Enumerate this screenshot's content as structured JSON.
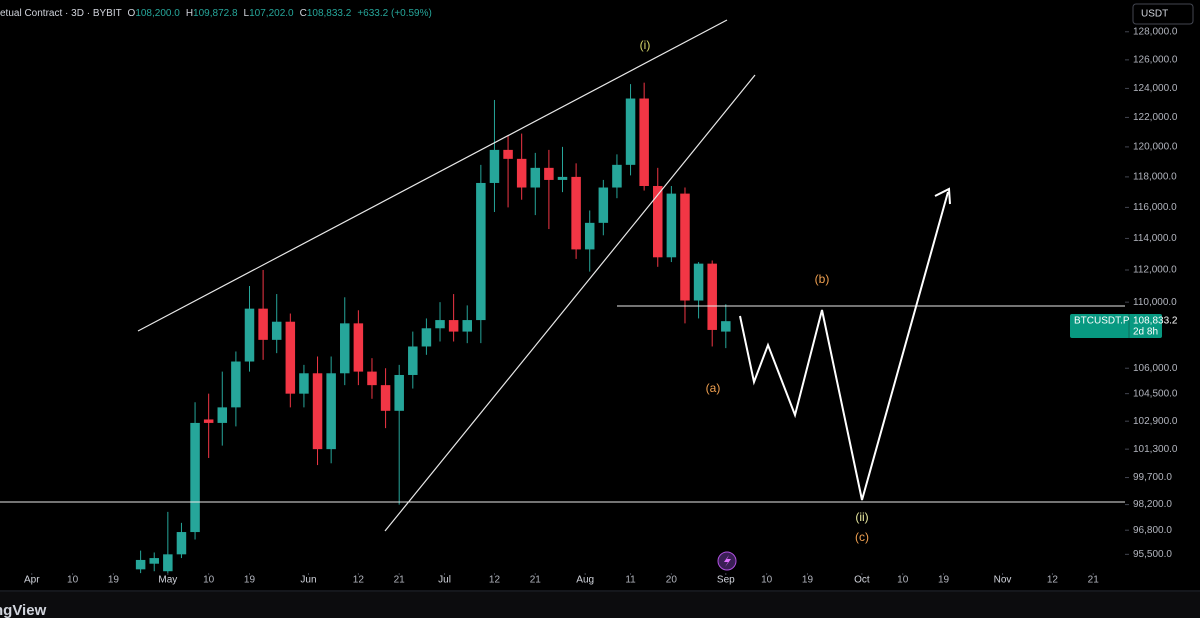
{
  "header": {
    "title": "etual Contract · 3D · BYBIT",
    "ohlc": [
      {
        "key": "O",
        "value": "108,200.0"
      },
      {
        "key": "H",
        "value": "109,872.8"
      },
      {
        "key": "L",
        "value": "107,202.0"
      },
      {
        "key": "C",
        "value": "108,833.2"
      }
    ],
    "change": "+633.2 (+0.59%)",
    "currency_button": "USDT",
    "brand": "ngView"
  },
  "price_label": {
    "symbol": "BTCUSDT.P",
    "price": "108,833.2",
    "countdown": "2d 8h"
  },
  "annotations": {
    "wave_i": "(i)",
    "wave_ii": "(ii)",
    "wave_a": "(a)",
    "wave_b": "(b)",
    "wave_c": "(c)"
  },
  "chart_data": {
    "type": "candlestick",
    "log_scale": true,
    "up_color": "#26a69a",
    "down_color": "#f23645",
    "x": [
      "04-25",
      "04-28",
      "05-01",
      "05-04",
      "05-07",
      "05-10",
      "05-13",
      "05-16",
      "05-19",
      "05-22",
      "05-25",
      "05-28",
      "05-31",
      "06-03",
      "06-06",
      "06-09",
      "06-12",
      "06-15",
      "06-18",
      "06-21",
      "06-24",
      "06-27",
      "06-30",
      "07-03",
      "07-06",
      "07-09",
      "07-12",
      "07-15",
      "07-18",
      "07-21",
      "07-24",
      "07-27",
      "07-30",
      "08-02",
      "08-05",
      "08-08",
      "08-11",
      "08-14",
      "08-17",
      "08-20",
      "08-23",
      "08-26",
      "08-29",
      "09-01"
    ],
    "open": [
      94700,
      95000,
      94600,
      95500,
      96700,
      103000,
      102800,
      103700,
      106400,
      109600,
      107700,
      108800,
      104500,
      105700,
      101300,
      105700,
      108700,
      105800,
      105000,
      103500,
      105600,
      107300,
      108400,
      108900,
      108200,
      108900,
      117600,
      119800,
      119200,
      117300,
      118600,
      117800,
      118000,
      113300,
      115000,
      117300,
      118800,
      123300,
      117400,
      112800,
      116900,
      110100,
      112400,
      108200
    ],
    "high": [
      95700,
      95600,
      97800,
      97200,
      104000,
      104500,
      105800,
      107000,
      111000,
      112000,
      110500,
      109300,
      106200,
      106700,
      106700,
      110300,
      109500,
      106600,
      106000,
      106200,
      108200,
      109000,
      110000,
      110500,
      109800,
      118800,
      123200,
      120800,
      120900,
      119600,
      119800,
      120000,
      118900,
      115800,
      117800,
      119500,
      124300,
      124400,
      118600,
      117400,
      117300,
      112500,
      112600,
      109872.8
    ],
    "low": [
      94500,
      94600,
      94500,
      95300,
      96300,
      100800,
      101500,
      102600,
      105800,
      106500,
      106900,
      103700,
      103700,
      100400,
      100500,
      105000,
      105000,
      104200,
      102500,
      98200,
      104800,
      106800,
      107600,
      107600,
      107500,
      107500,
      115700,
      116000,
      116500,
      115500,
      114600,
      117000,
      112700,
      111900,
      114200,
      116600,
      118100,
      117100,
      112200,
      112500,
      108700,
      109000,
      107300,
      107202
    ],
    "close": [
      95200,
      95300,
      95500,
      96700,
      102800,
      102800,
      103700,
      106400,
      109600,
      107700,
      108800,
      104500,
      105700,
      101300,
      105700,
      108700,
      105800,
      105000,
      103500,
      105600,
      107300,
      108400,
      108900,
      108200,
      108900,
      117600,
      119800,
      119200,
      117300,
      118600,
      117800,
      118000,
      113300,
      115000,
      117300,
      118800,
      123300,
      117400,
      112800,
      116900,
      110100,
      112400,
      108300,
      108833.2
    ],
    "ylim": [
      94400,
      130300
    ],
    "yticks": [
      {
        "value": 128000,
        "label": "128,000.0"
      },
      {
        "value": 126000,
        "label": "126,000.0"
      },
      {
        "value": 124000,
        "label": "124,000.0"
      },
      {
        "value": 122000,
        "label": "122,000.0"
      },
      {
        "value": 120000,
        "label": "120,000.0"
      },
      {
        "value": 118000,
        "label": "118,000.0"
      },
      {
        "value": 116000,
        "label": "116,000.0"
      },
      {
        "value": 114000,
        "label": "114,000.0"
      },
      {
        "value": 112000,
        "label": "112,000.0"
      },
      {
        "value": 110000,
        "label": "110,000.0"
      },
      {
        "value": 106000,
        "label": "106,000.0"
      },
      {
        "value": 104500,
        "label": "104,500.0"
      },
      {
        "value": 102900,
        "label": "102,900.0"
      },
      {
        "value": 101300,
        "label": "101,300.0"
      },
      {
        "value": 99700,
        "label": "99,700.0"
      },
      {
        "value": 98200,
        "label": "98,200.0"
      },
      {
        "value": 96800,
        "label": "96,800.0"
      },
      {
        "value": 95500,
        "label": "95,500.0"
      }
    ],
    "xlim": [
      "03-25",
      "11-28"
    ],
    "xticks": [
      {
        "value": "04-01",
        "label": "Apr"
      },
      {
        "value": "04-10",
        "label": "10"
      },
      {
        "value": "04-19",
        "label": "19"
      },
      {
        "value": "05-01",
        "label": "May"
      },
      {
        "value": "05-10",
        "label": "10"
      },
      {
        "value": "05-19",
        "label": "19"
      },
      {
        "value": "06-01",
        "label": "Jun"
      },
      {
        "value": "06-12",
        "label": "12"
      },
      {
        "value": "06-21",
        "label": "21"
      },
      {
        "value": "07-01",
        "label": "Jul"
      },
      {
        "value": "07-12",
        "label": "12"
      },
      {
        "value": "07-21",
        "label": "21"
      },
      {
        "value": "08-01",
        "label": "Aug"
      },
      {
        "value": "08-11",
        "label": "11"
      },
      {
        "value": "08-20",
        "label": "20"
      },
      {
        "value": "09-01",
        "label": "Sep"
      },
      {
        "value": "09-10",
        "label": "10"
      },
      {
        "value": "09-19",
        "label": "19"
      },
      {
        "value": "10-01",
        "label": "Oct"
      },
      {
        "value": "10-10",
        "label": "10"
      },
      {
        "value": "10-19",
        "label": "19"
      },
      {
        "value": "11-01",
        "label": "Nov"
      },
      {
        "value": "11-12",
        "label": "12"
      },
      {
        "value": "11-21",
        "label": "21"
      }
    ]
  }
}
